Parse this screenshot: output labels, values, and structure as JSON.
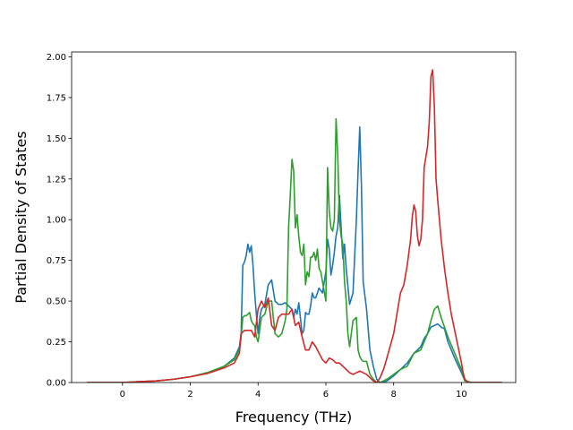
{
  "chart_data": {
    "type": "line",
    "title": "",
    "xlabel": "Frequency (THz)",
    "ylabel": "Partial Density of States",
    "xlim": [
      -1.5,
      11.6
    ],
    "ylim": [
      0,
      2.03
    ],
    "x_ticks": [
      0,
      2,
      4,
      6,
      8,
      10
    ],
    "x_tick_labels": [
      "0",
      "2",
      "4",
      "6",
      "8",
      "10"
    ],
    "y_ticks": [
      0,
      0.25,
      0.5,
      0.75,
      1.0,
      1.25,
      1.5,
      1.75,
      2.0
    ],
    "y_tick_labels": [
      "0.00",
      "0.25",
      "0.50",
      "0.75",
      "1.00",
      "1.25",
      "1.50",
      "1.75",
      "2.00"
    ],
    "grid": false,
    "legend": "none",
    "series": [
      {
        "color": "#1f77b4",
        "x": [
          -1.05,
          0,
          0.5,
          1.0,
          1.5,
          2.0,
          2.5,
          3.0,
          3.3,
          3.45,
          3.5,
          3.55,
          3.6,
          3.65,
          3.7,
          3.75,
          3.8,
          3.85,
          3.9,
          3.95,
          4.0,
          4.05,
          4.1,
          4.2,
          4.3,
          4.4,
          4.5,
          4.6,
          4.7,
          4.8,
          4.9,
          5.0,
          5.05,
          5.1,
          5.15,
          5.2,
          5.3,
          5.35,
          5.4,
          5.45,
          5.5,
          5.55,
          5.6,
          5.65,
          5.7,
          5.8,
          5.9,
          6.0,
          6.05,
          6.1,
          6.15,
          6.2,
          6.25,
          6.3,
          6.35,
          6.4,
          6.45,
          6.5,
          6.55,
          6.6,
          6.7,
          6.8,
          6.9,
          6.95,
          7.0,
          7.05,
          7.1,
          7.2,
          7.3,
          7.4,
          7.5,
          7.6,
          7.7,
          7.8,
          8.0,
          8.2,
          8.4,
          8.6,
          8.8,
          8.9,
          9.0,
          9.1,
          9.2,
          9.3,
          9.4,
          9.5,
          9.6,
          9.8,
          10.0,
          10.1,
          10.3,
          10.6,
          11.2
        ],
        "y": [
          0.0,
          0.0,
          0.005,
          0.01,
          0.02,
          0.035,
          0.06,
          0.1,
          0.15,
          0.22,
          0.3,
          0.72,
          0.74,
          0.78,
          0.85,
          0.8,
          0.84,
          0.72,
          0.55,
          0.42,
          0.3,
          0.4,
          0.45,
          0.48,
          0.6,
          0.63,
          0.5,
          0.48,
          0.48,
          0.49,
          0.47,
          0.45,
          0.4,
          0.45,
          0.42,
          0.49,
          0.3,
          0.32,
          0.43,
          0.42,
          0.42,
          0.47,
          0.55,
          0.52,
          0.52,
          0.58,
          0.55,
          0.68,
          0.88,
          0.82,
          0.66,
          0.72,
          0.8,
          0.9,
          0.95,
          1.15,
          0.95,
          0.76,
          0.85,
          0.7,
          0.48,
          0.55,
          1.0,
          1.3,
          1.57,
          1.2,
          0.62,
          0.45,
          0.2,
          0.1,
          0.02,
          0.0,
          0.0,
          0.01,
          0.04,
          0.08,
          0.12,
          0.18,
          0.22,
          0.27,
          0.3,
          0.34,
          0.35,
          0.36,
          0.34,
          0.33,
          0.25,
          0.15,
          0.06,
          0.01,
          0.0,
          0.0,
          0.0
        ]
      },
      {
        "color": "#2ca02c",
        "x": [
          -1.05,
          0,
          0.5,
          1.0,
          1.5,
          2.0,
          2.5,
          3.0,
          3.3,
          3.45,
          3.5,
          3.55,
          3.6,
          3.65,
          3.7,
          3.75,
          3.8,
          3.85,
          3.9,
          3.95,
          4.0,
          4.1,
          4.2,
          4.3,
          4.4,
          4.5,
          4.6,
          4.7,
          4.8,
          4.85,
          4.9,
          4.95,
          5.0,
          5.05,
          5.1,
          5.15,
          5.2,
          5.25,
          5.3,
          5.35,
          5.4,
          5.45,
          5.5,
          5.55,
          5.6,
          5.65,
          5.7,
          5.75,
          5.8,
          5.85,
          5.9,
          6.0,
          6.05,
          6.1,
          6.15,
          6.2,
          6.25,
          6.3,
          6.35,
          6.4,
          6.45,
          6.5,
          6.55,
          6.6,
          6.65,
          6.7,
          6.75,
          6.8,
          6.9,
          6.95,
          7.0,
          7.05,
          7.1,
          7.2,
          7.3,
          7.4,
          7.5,
          7.6,
          7.8,
          8.0,
          8.2,
          8.4,
          8.5,
          8.6,
          8.8,
          8.9,
          9.0,
          9.1,
          9.2,
          9.3,
          9.4,
          9.6,
          9.8,
          10.0,
          10.1,
          10.3,
          10.6,
          11.2
        ],
        "y": [
          0.0,
          0.0,
          0.005,
          0.01,
          0.02,
          0.035,
          0.06,
          0.1,
          0.14,
          0.2,
          0.28,
          0.4,
          0.41,
          0.41,
          0.42,
          0.43,
          0.38,
          0.36,
          0.35,
          0.28,
          0.25,
          0.4,
          0.42,
          0.5,
          0.5,
          0.3,
          0.28,
          0.3,
          0.38,
          0.45,
          0.95,
          1.15,
          1.37,
          1.3,
          0.95,
          1.03,
          0.9,
          0.8,
          0.78,
          0.85,
          0.6,
          0.68,
          0.65,
          0.77,
          0.77,
          0.8,
          0.75,
          0.82,
          0.7,
          0.68,
          0.62,
          0.5,
          1.32,
          1.05,
          0.95,
          0.93,
          1.0,
          1.62,
          1.4,
          1.0,
          0.9,
          0.85,
          0.62,
          0.5,
          0.3,
          0.22,
          0.3,
          0.38,
          0.4,
          0.2,
          0.16,
          0.14,
          0.13,
          0.13,
          0.05,
          0.02,
          0.0,
          0.0,
          0.02,
          0.05,
          0.08,
          0.1,
          0.14,
          0.18,
          0.2,
          0.25,
          0.3,
          0.38,
          0.45,
          0.47,
          0.4,
          0.28,
          0.18,
          0.08,
          0.01,
          0.0,
          0.0,
          0.0
        ]
      },
      {
        "color": "#d62728",
        "x": [
          -1.05,
          0,
          0.5,
          1.0,
          1.5,
          2.0,
          2.5,
          3.0,
          3.3,
          3.45,
          3.5,
          3.6,
          3.7,
          3.8,
          3.9,
          4.0,
          4.1,
          4.2,
          4.3,
          4.4,
          4.5,
          4.6,
          4.7,
          4.8,
          4.9,
          5.0,
          5.1,
          5.2,
          5.3,
          5.4,
          5.5,
          5.6,
          5.7,
          5.8,
          5.9,
          6.0,
          6.1,
          6.2,
          6.3,
          6.4,
          6.5,
          6.6,
          6.7,
          6.8,
          6.9,
          7.0,
          7.1,
          7.2,
          7.3,
          7.4,
          7.5,
          7.6,
          7.7,
          7.8,
          8.0,
          8.2,
          8.3,
          8.4,
          8.5,
          8.55,
          8.6,
          8.65,
          8.7,
          8.75,
          8.8,
          8.85,
          8.9,
          9.0,
          9.05,
          9.1,
          9.15,
          9.2,
          9.25,
          9.3,
          9.4,
          9.5,
          9.6,
          9.7,
          9.8,
          9.9,
          10.0,
          10.05,
          10.1,
          10.2,
          10.4,
          10.6,
          11.2
        ],
        "y": [
          0.0,
          0.0,
          0.005,
          0.01,
          0.02,
          0.035,
          0.055,
          0.09,
          0.12,
          0.18,
          0.3,
          0.32,
          0.32,
          0.32,
          0.28,
          0.45,
          0.5,
          0.46,
          0.52,
          0.35,
          0.32,
          0.4,
          0.42,
          0.42,
          0.42,
          0.45,
          0.35,
          0.37,
          0.28,
          0.2,
          0.2,
          0.25,
          0.22,
          0.18,
          0.14,
          0.12,
          0.15,
          0.14,
          0.12,
          0.12,
          0.1,
          0.08,
          0.06,
          0.05,
          0.06,
          0.07,
          0.06,
          0.05,
          0.03,
          0.01,
          0.0,
          0.03,
          0.08,
          0.15,
          0.3,
          0.55,
          0.6,
          0.72,
          0.88,
          1.02,
          1.09,
          1.05,
          0.9,
          0.84,
          0.88,
          1.0,
          1.32,
          1.45,
          1.6,
          1.88,
          1.92,
          1.7,
          1.25,
          1.12,
          0.88,
          0.7,
          0.55,
          0.42,
          0.32,
          0.22,
          0.12,
          0.06,
          0.02,
          0.0,
          0.0,
          0.0,
          0.0
        ]
      }
    ]
  }
}
